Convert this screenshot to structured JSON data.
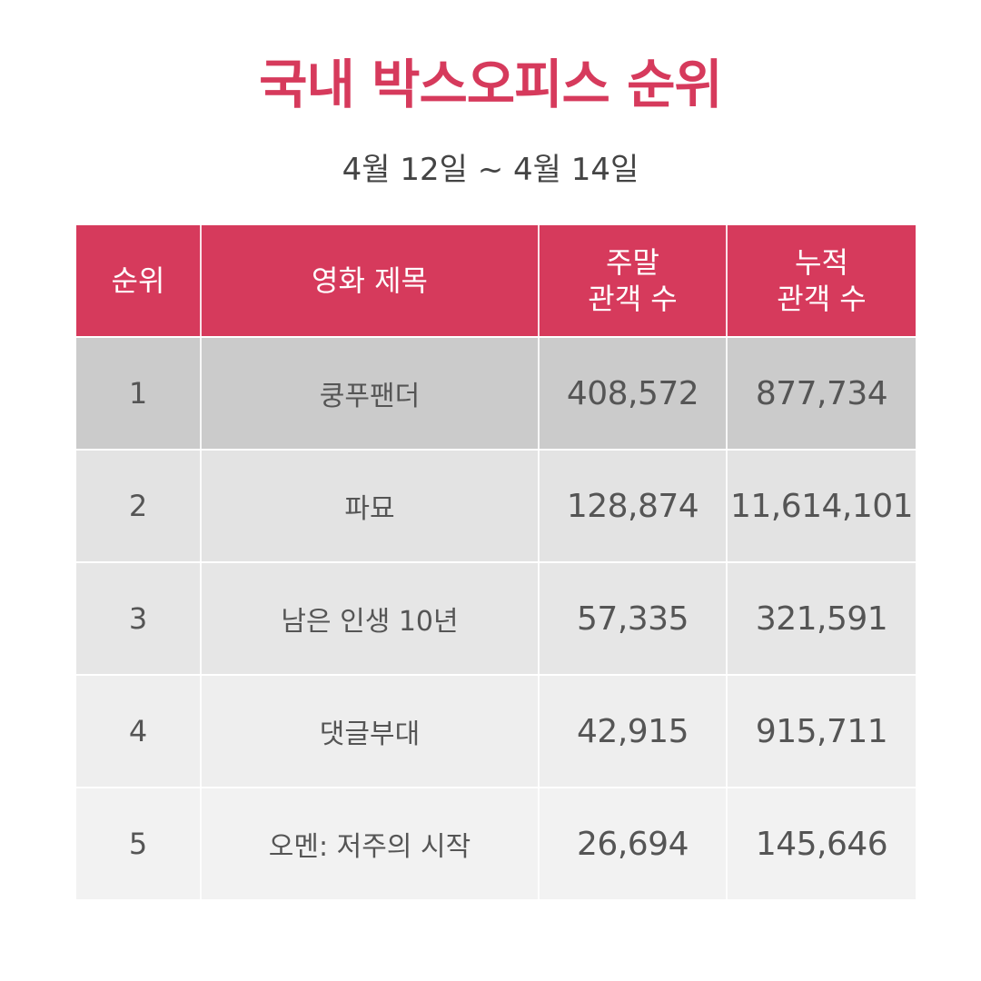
{
  "title": "국내 박스오피스 순위",
  "subtitle": "4월 12일 ~ 4월 14일",
  "colors": {
    "accent": "#d63a5c",
    "row_bg": [
      "#cbcbcb",
      "#e3e3e3",
      "#e6e6e6",
      "#eeeeee",
      "#f2f2f2"
    ],
    "text": "#555555"
  },
  "table": {
    "headers": {
      "rank": "순위",
      "title": "영화 제목",
      "weekend_line1": "주말",
      "weekend_line2": "관객 수",
      "total_line1": "누적",
      "total_line2": "관객 수"
    },
    "rows": [
      {
        "rank": "1",
        "title": "쿵푸팬더",
        "weekend": "408,572",
        "total": "877,734"
      },
      {
        "rank": "2",
        "title": "파묘",
        "weekend": "128,874",
        "total": "11,614,101"
      },
      {
        "rank": "3",
        "title": "남은 인생 10년",
        "weekend": "57,335",
        "total": "321,591"
      },
      {
        "rank": "4",
        "title": "댓글부대",
        "weekend": "42,915",
        "total": "915,711"
      },
      {
        "rank": "5",
        "title": "오멘: 저주의 시작",
        "weekend": "26,694",
        "total": "145,646"
      }
    ]
  }
}
